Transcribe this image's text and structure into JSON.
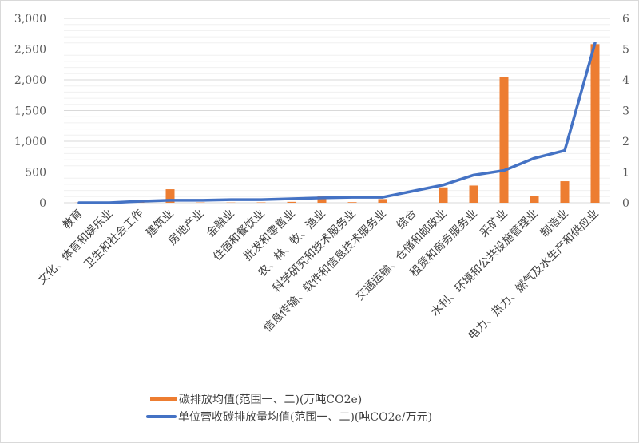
{
  "chart_data": {
    "type": "bar+line",
    "title": "",
    "xlabel": "",
    "ylabel_left": "",
    "ylabel_right": "",
    "categories": [
      "教育",
      "文化、体育和娱乐业",
      "卫生和社会工作",
      "建筑业",
      "房地产业",
      "金融业",
      "住宿和餐饮业",
      "批发和零售业",
      "农、林、牧、渔业",
      "科学研究和技术服务业",
      "信息传输、软件和信息技术服务业",
      "综合",
      "交通运输、仓储和邮政业",
      "租赁和商务服务业",
      "采矿业",
      "水利、环境和公共设施管理业",
      "制造业",
      "电力、热力、燃气及水生产和供应业"
    ],
    "series": [
      {
        "name": "碳排放均值(范围一、二)(万吨CO2e)",
        "type": "bar",
        "axis": "left",
        "color": "#ed7d31",
        "values": [
          2,
          3,
          8,
          220,
          5,
          4,
          6,
          15,
          115,
          10,
          60,
          0,
          250,
          280,
          2050,
          105,
          350,
          2580
        ]
      },
      {
        "name": "单位营收碳排放量均值(范围一、二)(吨CO2e/万元)",
        "type": "line",
        "axis": "right",
        "color": "#4472c4",
        "values": [
          0.0,
          0.0,
          0.05,
          0.08,
          0.08,
          0.1,
          0.1,
          0.13,
          0.16,
          0.18,
          0.18,
          0.38,
          0.58,
          0.9,
          1.05,
          1.45,
          1.7,
          5.2
        ]
      }
    ],
    "y_left": {
      "range": [
        0,
        3000
      ],
      "ticks": [
        "0",
        "500",
        "1,000",
        "1,500",
        "2,000",
        "2,500",
        "3,000"
      ]
    },
    "y_right": {
      "range": [
        0,
        6
      ],
      "ticks": [
        "0",
        "1",
        "2",
        "3",
        "4",
        "5",
        "6"
      ]
    },
    "grid": true,
    "legend_position": "bottom"
  },
  "legend": {
    "bar_label": "碳排放均值(范围一、二)(万吨CO2e)",
    "line_label": "单位营收碳排放量均值(范围一、二)(吨CO2e/万元)"
  }
}
